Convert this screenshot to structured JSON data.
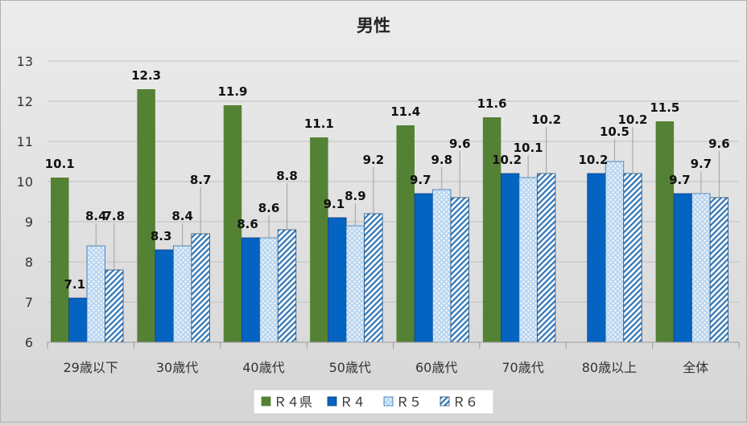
{
  "chart_data": {
    "type": "bar",
    "title": "男性",
    "xlabel": "",
    "ylabel": "",
    "ylim": [
      6,
      13
    ],
    "yticks": [
      "6",
      "7",
      "8",
      "9",
      "10",
      "11",
      "12",
      "13"
    ],
    "grid": true,
    "legend_position": "bottom",
    "categories": [
      "29歳以下",
      "30歳代",
      "40歳代",
      "50歳代",
      "60歳代",
      "70歳代",
      "80歳以上",
      "全体"
    ],
    "series": [
      {
        "name": "Ｒ４県",
        "color": "#548235",
        "values": [
          10.1,
          12.3,
          11.9,
          11.1,
          11.4,
          11.6,
          null,
          11.5
        ],
        "labels": [
          "10.1",
          "12.3",
          "11.9",
          "11.1",
          "11.4",
          "11.6",
          "",
          "11.5"
        ]
      },
      {
        "name": "Ｒ４",
        "color": "#0563C1",
        "values": [
          7.1,
          8.3,
          8.6,
          9.1,
          9.7,
          10.2,
          10.2,
          9.7
        ],
        "labels": [
          "7.1",
          "8.3",
          "8.6",
          "9.1",
          "9.7",
          "10.2",
          "10.2",
          "9.7"
        ]
      },
      {
        "name": "Ｒ５",
        "color": "#9DC3E6",
        "values": [
          8.4,
          8.4,
          8.6,
          8.9,
          9.8,
          10.1,
          10.5,
          9.7
        ],
        "labels": [
          "8.4",
          "8.4",
          "8.6",
          "8.9",
          "9.8",
          "10.1",
          "10.5",
          "9.7"
        ]
      },
      {
        "name": "Ｒ６",
        "color": "#2E75B6",
        "values": [
          7.8,
          8.7,
          8.8,
          9.2,
          9.6,
          10.2,
          10.2,
          9.6
        ],
        "labels": [
          "7.8",
          "8.7",
          "8.8",
          "9.2",
          "9.6",
          "10.2",
          "10.2",
          "9.6"
        ]
      }
    ]
  }
}
